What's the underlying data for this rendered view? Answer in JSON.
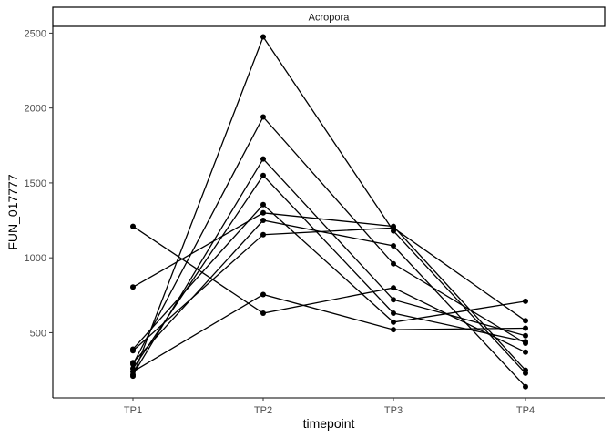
{
  "chart_data": {
    "type": "line",
    "facet_label": "Acropora",
    "xlabel": "timepoint",
    "ylabel": "FUN_017777",
    "categories": [
      "TP1",
      "TP2",
      "TP3",
      "TP4"
    ],
    "ylim": [
      65,
      2545
    ],
    "yticks": [
      500,
      1000,
      1500,
      2000,
      2500
    ],
    "grid": false,
    "colors": {
      "line": "#000000",
      "point": "#000000",
      "axis": "#000000",
      "tick_text": "#4d4d4d"
    },
    "series": [
      {
        "values": [
          210,
          2475,
          1180,
          230
        ]
      },
      {
        "values": [
          290,
          1940,
          960,
          430
        ]
      },
      {
        "values": [
          220,
          1660,
          720,
          480
        ]
      },
      {
        "values": [
          260,
          1550,
          630,
          440
        ]
      },
      {
        "values": [
          390,
          1355,
          570,
          710
        ]
      },
      {
        "values": [
          1210,
          630,
          800,
          370
        ]
      },
      {
        "values": [
          805,
          1300,
          1210,
          250
        ]
      },
      {
        "values": [
          300,
          1250,
          1080,
          140
        ]
      },
      {
        "values": [
          380,
          1155,
          1200,
          580
        ]
      },
      {
        "values": [
          240,
          755,
          520,
          530
        ]
      }
    ]
  }
}
